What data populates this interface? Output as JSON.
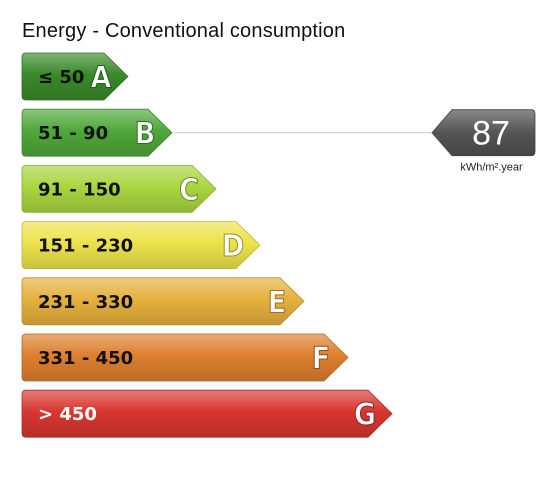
{
  "chart_data": {
    "type": "bar",
    "title": "Energy - Conventional consumption",
    "categories": [
      "≤ 50",
      "51 - 90",
      "91 - 150",
      "151 - 230",
      "231 - 330",
      "331 - 450",
      "> 450"
    ],
    "classes": [
      {
        "letter": "A",
        "range": "≤ 50",
        "color": "#3a8a2a",
        "text_color": "#111111"
      },
      {
        "letter": "B",
        "range": "51 - 90",
        "color": "#4fa83a",
        "text_color": "#111111"
      },
      {
        "letter": "C",
        "range": "91 - 150",
        "color": "#a9d63f",
        "text_color": "#111111"
      },
      {
        "letter": "D",
        "range": "151 - 230",
        "color": "#ece34a",
        "text_color": "#111111"
      },
      {
        "letter": "E",
        "range": "231 - 330",
        "color": "#e6b13d",
        "text_color": "#111111"
      },
      {
        "letter": "F",
        "range": "331 - 450",
        "color": "#de7f2e",
        "text_color": "#111111"
      },
      {
        "letter": "G",
        "range": "> 450",
        "color": "#d8362f",
        "text_color": "#ffffff"
      }
    ],
    "indicator": {
      "value": "87",
      "unit": "kWh/m².year",
      "class": "B",
      "color": "#555555"
    }
  }
}
